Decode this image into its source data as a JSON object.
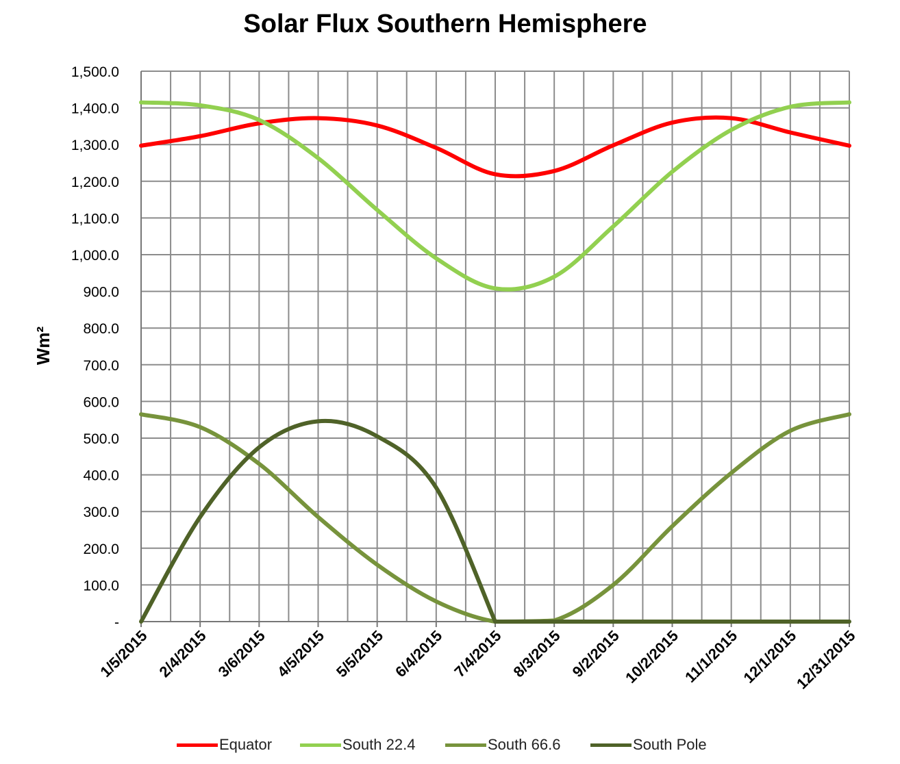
{
  "chart_data": {
    "type": "line",
    "title": "Solar Flux Southern Hemisphere",
    "ylabel": "Wm²",
    "xlabel": "",
    "ylim": [
      0,
      1500
    ],
    "y_ticks": [
      0,
      100,
      200,
      300,
      400,
      500,
      600,
      700,
      800,
      900,
      1000,
      1100,
      1200,
      1300,
      1400,
      1500
    ],
    "y_tick_labels": [
      "-",
      "100.0",
      "200.0",
      "300.0",
      "400.0",
      "500.0",
      "600.0",
      "700.0",
      "800.0",
      "900.0",
      "1,000.0",
      "1,100.0",
      "1,200.0",
      "1,300.0",
      "1,400.0",
      "1,500.0"
    ],
    "x_tick_labels": [
      "1/5/2015",
      "2/4/2015",
      "3/6/2015",
      "4/5/2015",
      "5/5/2015",
      "6/4/2015",
      "7/4/2015",
      "8/3/2015",
      "9/2/2015",
      "10/2/2015",
      "11/1/2015",
      "12/1/2015",
      "12/31/2015"
    ],
    "x_range": [
      "1/5/2015",
      "12/31/2015"
    ],
    "grid": true,
    "legend_position": "bottom",
    "x": [
      "1/5/2015",
      "2/4/2015",
      "3/6/2015",
      "4/5/2015",
      "5/5/2015",
      "6/4/2015",
      "7/4/2015",
      "8/3/2015",
      "9/2/2015",
      "10/2/2015",
      "11/1/2015",
      "12/1/2015",
      "12/31/2015"
    ],
    "series": [
      {
        "name": "Equator",
        "color": "#ff0000",
        "values": [
          1297,
          1323,
          1358,
          1372,
          1352,
          1291,
          1219,
          1228,
          1298,
          1360,
          1372,
          1333,
          1297
        ]
      },
      {
        "name": "South 22.4",
        "color": "#92d050",
        "values": [
          1415,
          1407,
          1367,
          1263,
          1122,
          990,
          908,
          940,
          1077,
          1226,
          1340,
          1403,
          1415
        ]
      },
      {
        "name": "South 66.6",
        "color": "#77933c",
        "values": [
          565,
          530,
          430,
          285,
          155,
          55,
          0,
          3,
          100,
          260,
          405,
          520,
          565
        ]
      },
      {
        "name": "South Pole",
        "color": "#4f6228",
        "values": [
          0,
          285,
          475,
          546,
          505,
          365,
          0,
          0,
          0,
          0,
          0,
          0,
          0
        ]
      }
    ]
  }
}
